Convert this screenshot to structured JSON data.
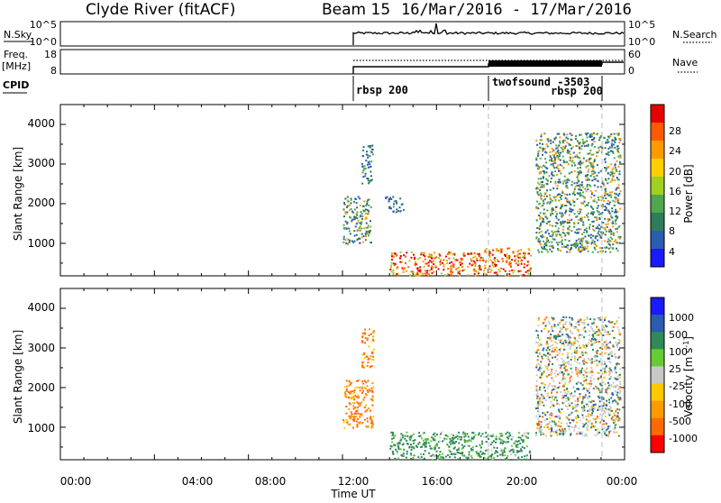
{
  "header": {
    "station": "Clyde River (fitACF)",
    "beam": "Beam 15",
    "date_range": "16/Mar/2016 - 17/Mar/2016"
  },
  "top_panels": {
    "nsky_label": "N.Sky",
    "nsky_ticks": [
      "10^5",
      "10^0"
    ],
    "nsky_right_ticks": [
      "10^5",
      "10^0"
    ],
    "nsearch_label": "N.Search",
    "freq_label": "Freq.",
    "freq_unit": "[MHz]",
    "freq_ticks": [
      "18",
      "8"
    ],
    "nave_ticks": [
      "60",
      "0"
    ],
    "nave_label": "Nave",
    "cpid_label": "CPID",
    "cpid_segments": [
      {
        "name": "rbsp 200",
        "start_hour": 12.0
      },
      {
        "name": "twofsound -3503",
        "start_hour": 18.0
      },
      {
        "name": "rbsp 200",
        "start_hour": 21.9
      }
    ]
  },
  "chart_data": [
    {
      "type": "heatmap",
      "title": "",
      "quantity": "Power",
      "ylabel": "Slant Range [km]",
      "xlim": [
        0,
        24
      ],
      "ylim": [
        180,
        4500
      ],
      "y_ticks": [
        "4000",
        "3000",
        "2000",
        "1000"
      ],
      "colorbar": {
        "label": "Power [dB]",
        "range": [
          0,
          32
        ],
        "ticks": [
          "28",
          "24",
          "20",
          "16",
          "12",
          "8",
          "4"
        ]
      },
      "scatter_regions": [
        {
          "t_start": 12.0,
          "t_end": 13.2,
          "r_min": 1000,
          "r_max": 2200,
          "level": "medium"
        },
        {
          "t_start": 12.8,
          "t_end": 13.3,
          "r_min": 2500,
          "r_max": 3500,
          "level": "low"
        },
        {
          "t_start": 13.8,
          "t_end": 14.6,
          "r_min": 1800,
          "r_max": 2200,
          "level": "low"
        },
        {
          "t_start": 14.0,
          "t_end": 18.0,
          "r_min": 200,
          "r_max": 800,
          "level": "high"
        },
        {
          "t_start": 18.0,
          "t_end": 20.0,
          "r_min": 200,
          "r_max": 900,
          "level": "high"
        },
        {
          "t_start": 20.2,
          "t_end": 23.8,
          "r_min": 800,
          "r_max": 3800,
          "level": "medium"
        }
      ]
    },
    {
      "type": "heatmap",
      "title": "",
      "quantity": "Velocity",
      "ylabel": "Slant Range [km]",
      "xlim": [
        0,
        24
      ],
      "ylim": [
        180,
        4500
      ],
      "y_ticks": [
        "4000",
        "3000",
        "2000",
        "1000"
      ],
      "colorbar": {
        "label": "Velocity [m s^-1]",
        "ticks": [
          "1000",
          "500",
          "100",
          "25",
          "-25",
          "-100",
          "-500",
          "-1000"
        ]
      },
      "scatter_regions": [
        {
          "t_start": 12.0,
          "t_end": 13.3,
          "r_min": 1000,
          "r_max": 2200,
          "level": "negative"
        },
        {
          "t_start": 12.8,
          "t_end": 13.3,
          "r_min": 2500,
          "r_max": 3500,
          "level": "negative"
        },
        {
          "t_start": 14.0,
          "t_end": 20.0,
          "r_min": 200,
          "r_max": 900,
          "level": "positive"
        },
        {
          "t_start": 20.2,
          "t_end": 23.8,
          "r_min": 800,
          "r_max": 3800,
          "level": "mixed"
        }
      ]
    }
  ],
  "x_axis": {
    "label": "Time UT",
    "ticks": [
      "00:00",
      "04:00",
      "08:00",
      "12:00",
      "16:00",
      "20:00",
      "00:00"
    ]
  },
  "colors": {
    "power_scale": [
      "#1a1aff",
      "#2a5cb0",
      "#2e7d5a",
      "#4fa84f",
      "#a0d020",
      "#ffd000",
      "#ff9a00",
      "#ff5a00",
      "#e60000"
    ],
    "velocity_scale": [
      "#ff0000",
      "#ff6a00",
      "#ff9a00",
      "#ffc800",
      "#c8c8c8",
      "#66cc33",
      "#2e8b57",
      "#2a5cb0",
      "#1a1aff"
    ]
  }
}
